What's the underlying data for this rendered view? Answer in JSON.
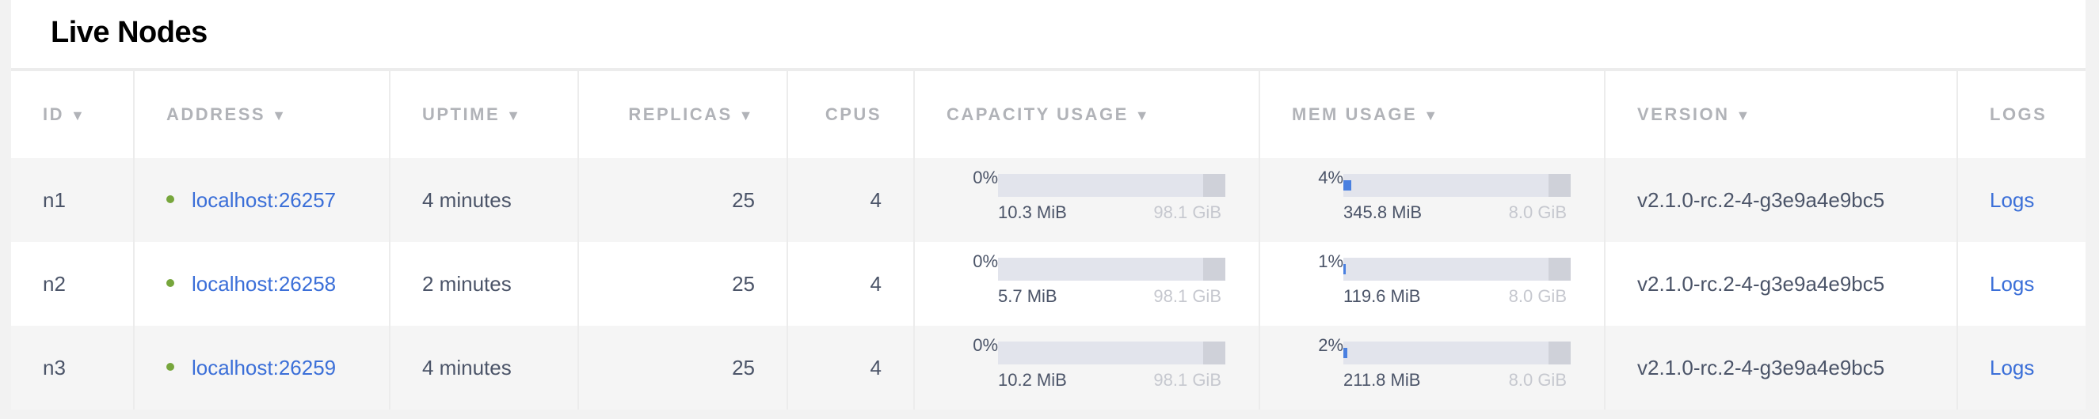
{
  "title": "Live Nodes",
  "columns": {
    "id": "ID",
    "address": "ADDRESS",
    "uptime": "UPTIME",
    "replicas": "REPLICAS",
    "cpus": "CPUS",
    "capacity": "CAPACITY USAGE",
    "mem": "MEM USAGE",
    "version": "VERSION",
    "logs": "LOGS",
    "sort_arrow": "▼"
  },
  "colors": {
    "link": "#3b6fd8",
    "status_live": "#77a63c",
    "bar_fill": "#4a80e0"
  },
  "rows": [
    {
      "id": "n1",
      "address": "localhost:26257",
      "uptime": "4 minutes",
      "replicas": "25",
      "cpus": "4",
      "cap_pct": "0%",
      "cap_value": 0,
      "cap_used": "10.3 MiB",
      "cap_total": "98.1 GiB",
      "mem_pct": "4%",
      "mem_value": 4,
      "mem_used": "345.8 MiB",
      "mem_total": "8.0 GiB",
      "version": "v2.1.0-rc.2-4-g3e9a4e9bc5",
      "logs": "Logs"
    },
    {
      "id": "n2",
      "address": "localhost:26258",
      "uptime": "2 minutes",
      "replicas": "25",
      "cpus": "4",
      "cap_pct": "0%",
      "cap_value": 0,
      "cap_used": "5.7 MiB",
      "cap_total": "98.1 GiB",
      "mem_pct": "1%",
      "mem_value": 1,
      "mem_used": "119.6 MiB",
      "mem_total": "8.0 GiB",
      "version": "v2.1.0-rc.2-4-g3e9a4e9bc5",
      "logs": "Logs"
    },
    {
      "id": "n3",
      "address": "localhost:26259",
      "uptime": "4 minutes",
      "replicas": "25",
      "cpus": "4",
      "cap_pct": "0%",
      "cap_value": 0,
      "cap_used": "10.2 MiB",
      "cap_total": "98.1 GiB",
      "mem_pct": "2%",
      "mem_value": 2,
      "mem_used": "211.8 MiB",
      "mem_total": "8.0 GiB",
      "version": "v2.1.0-rc.2-4-g3e9a4e9bc5",
      "logs": "Logs"
    }
  ]
}
